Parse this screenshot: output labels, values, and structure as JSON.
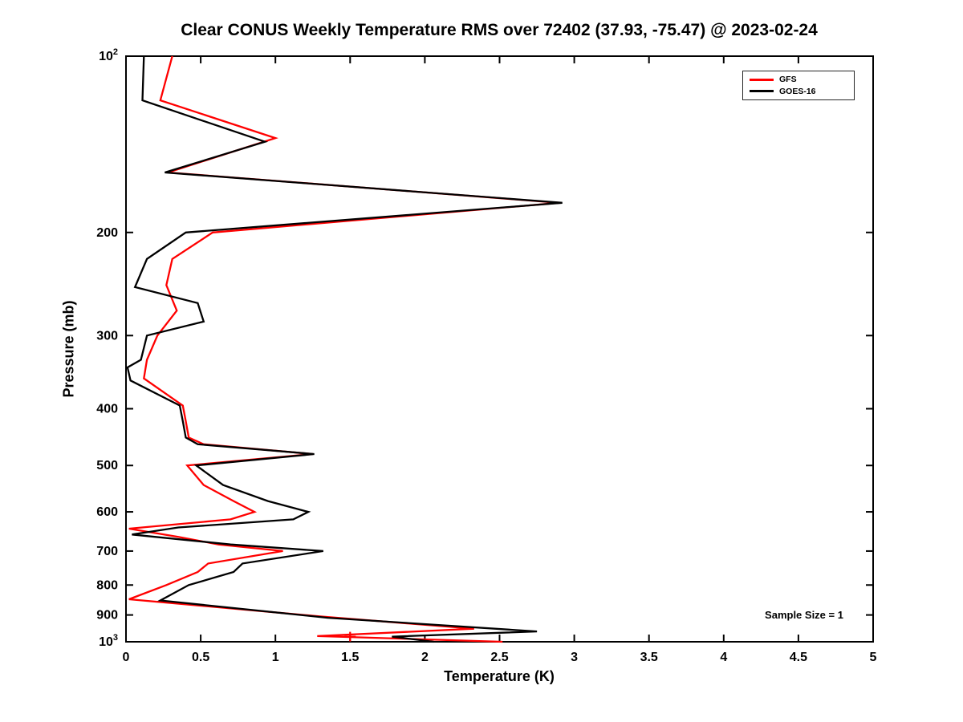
{
  "figure": {
    "title": "Clear CONUS Weekly Temperature RMS over 72402 (37.93, -75.47) @ 2023-02-24",
    "xlabel": "Temperature (K)",
    "ylabel": "Pressure (mb)",
    "annotation": "Sample Size = 1"
  },
  "chart_data": {
    "type": "line",
    "title": "Clear CONUS Weekly Temperature RMS over 72402 (37.93, -75.47) @ 2023-02-24",
    "xlabel": "Temperature (K)",
    "ylabel": "Pressure (mb)",
    "xlim": [
      0,
      5
    ],
    "x_ticks": [
      0,
      0.5,
      1,
      1.5,
      2,
      2.5,
      3,
      3.5,
      4,
      4.5,
      5
    ],
    "x_tick_labels": [
      "0",
      "0.5",
      "1",
      "1.5",
      "2",
      "2.5",
      "3",
      "3.5",
      "4",
      "4.5",
      "5"
    ],
    "ylim": [
      100,
      1000
    ],
    "y_scale": "log",
    "y_inverted": true,
    "y_ticks": [
      100,
      200,
      300,
      400,
      500,
      600,
      700,
      800,
      900,
      1000
    ],
    "y_tick_labels": [
      {
        "base": "10",
        "sup": "2"
      },
      "200",
      "300",
      "400",
      "500",
      "600",
      "700",
      "800",
      "900",
      {
        "base": "10",
        "sup": "3"
      }
    ],
    "grid": false,
    "legend_position": "top-right",
    "annotation": {
      "text": "Sample Size = 1"
    },
    "marker": {
      "x": 1.5,
      "pressure": 980,
      "color": "#ff0000",
      "shape": "plus"
    },
    "series": [
      {
        "name": "GFS",
        "color": "#ff0000",
        "pressure": [
          100,
          119,
          138,
          158,
          178,
          200,
          222,
          246,
          272,
          300,
          330,
          355,
          395,
          420,
          448,
          460,
          478,
          500,
          540,
          575,
          600,
          618,
          641,
          662,
          682,
          700,
          735,
          760,
          800,
          846,
          905,
          950,
          978,
          1000
        ],
        "rms": [
          0.31,
          0.23,
          1.0,
          0.28,
          2.9,
          0.58,
          0.31,
          0.27,
          0.34,
          0.21,
          0.14,
          0.12,
          0.38,
          0.4,
          0.42,
          0.52,
          1.25,
          0.41,
          0.52,
          0.72,
          0.86,
          0.7,
          0.02,
          0.35,
          0.62,
          1.05,
          0.55,
          0.48,
          0.27,
          0.02,
          1.3,
          2.33,
          1.28,
          2.52
        ]
      },
      {
        "name": "GOES-16",
        "color": "#000000",
        "pressure": [
          100,
          119,
          140,
          158,
          178,
          200,
          222,
          248,
          264,
          284,
          300,
          330,
          340,
          358,
          395,
          420,
          448,
          460,
          478,
          500,
          540,
          575,
          600,
          618,
          638,
          656,
          682,
          700,
          735,
          760,
          800,
          850,
          910,
          960,
          980,
          1000
        ],
        "rms": [
          0.12,
          0.11,
          0.93,
          0.26,
          2.92,
          0.4,
          0.14,
          0.06,
          0.48,
          0.52,
          0.14,
          0.1,
          0.01,
          0.03,
          0.36,
          0.38,
          0.4,
          0.48,
          1.26,
          0.47,
          0.65,
          0.95,
          1.22,
          1.12,
          0.35,
          0.04,
          0.7,
          1.32,
          0.78,
          0.72,
          0.42,
          0.23,
          1.35,
          2.75,
          1.78,
          2.06
        ]
      }
    ]
  }
}
